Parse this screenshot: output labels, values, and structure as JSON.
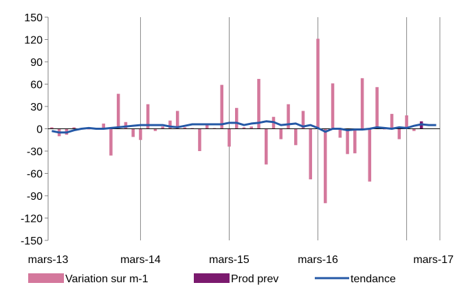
{
  "chart_data": {
    "type": "bar",
    "x_ticks": [
      "mars-13",
      "mars-14",
      "mars-15",
      "mars-16",
      "mars-17"
    ],
    "ylim": [
      -150,
      150
    ],
    "y_ticks": [
      150,
      120,
      90,
      60,
      30,
      0,
      -30,
      -60,
      -90,
      -120,
      -150
    ],
    "grid": "vertical",
    "legend_position": "bottom",
    "colors": {
      "variation": "#d4789c",
      "prod_prev": "#7b1a6e",
      "tendance": "#2458a6",
      "grid": "#888888",
      "axis": "#808080"
    },
    "series": [
      {
        "name": "Variation sur m-1",
        "type": "bar",
        "values": [
          2,
          -10,
          -8,
          2,
          0,
          0,
          0,
          7,
          -36,
          47,
          9,
          -11,
          -15,
          33,
          -3,
          3,
          11,
          24,
          2,
          1,
          -30,
          6,
          1,
          59,
          -24,
          28,
          2,
          3,
          67,
          -48,
          16,
          -14,
          33,
          -22,
          24,
          -68,
          121,
          -100,
          61,
          -12,
          -34,
          -33,
          68,
          -71,
          56,
          0,
          20,
          -14,
          18,
          -3
        ]
      },
      {
        "name": "Prod prev",
        "type": "bar",
        "values": [
          null,
          null,
          null,
          null,
          null,
          null,
          null,
          null,
          null,
          null,
          null,
          null,
          null,
          null,
          null,
          null,
          null,
          null,
          null,
          null,
          null,
          null,
          null,
          null,
          null,
          null,
          null,
          null,
          null,
          null,
          null,
          null,
          null,
          null,
          null,
          null,
          null,
          null,
          null,
          null,
          null,
          null,
          null,
          null,
          null,
          null,
          null,
          null,
          null,
          null,
          10
        ]
      },
      {
        "name": "tendance",
        "type": "line",
        "values": [
          -3,
          -5,
          -5,
          -2,
          0,
          1,
          0,
          0,
          1,
          2,
          3,
          4,
          5,
          5,
          5,
          5,
          3,
          2,
          4,
          6,
          6,
          6,
          6,
          6,
          8,
          8,
          5,
          7,
          8,
          10,
          9,
          5,
          6,
          7,
          3,
          5,
          1,
          -4,
          0,
          0,
          -2,
          -1,
          -1,
          0,
          2,
          1,
          0,
          2,
          1,
          4,
          6,
          5,
          5
        ]
      }
    ]
  }
}
